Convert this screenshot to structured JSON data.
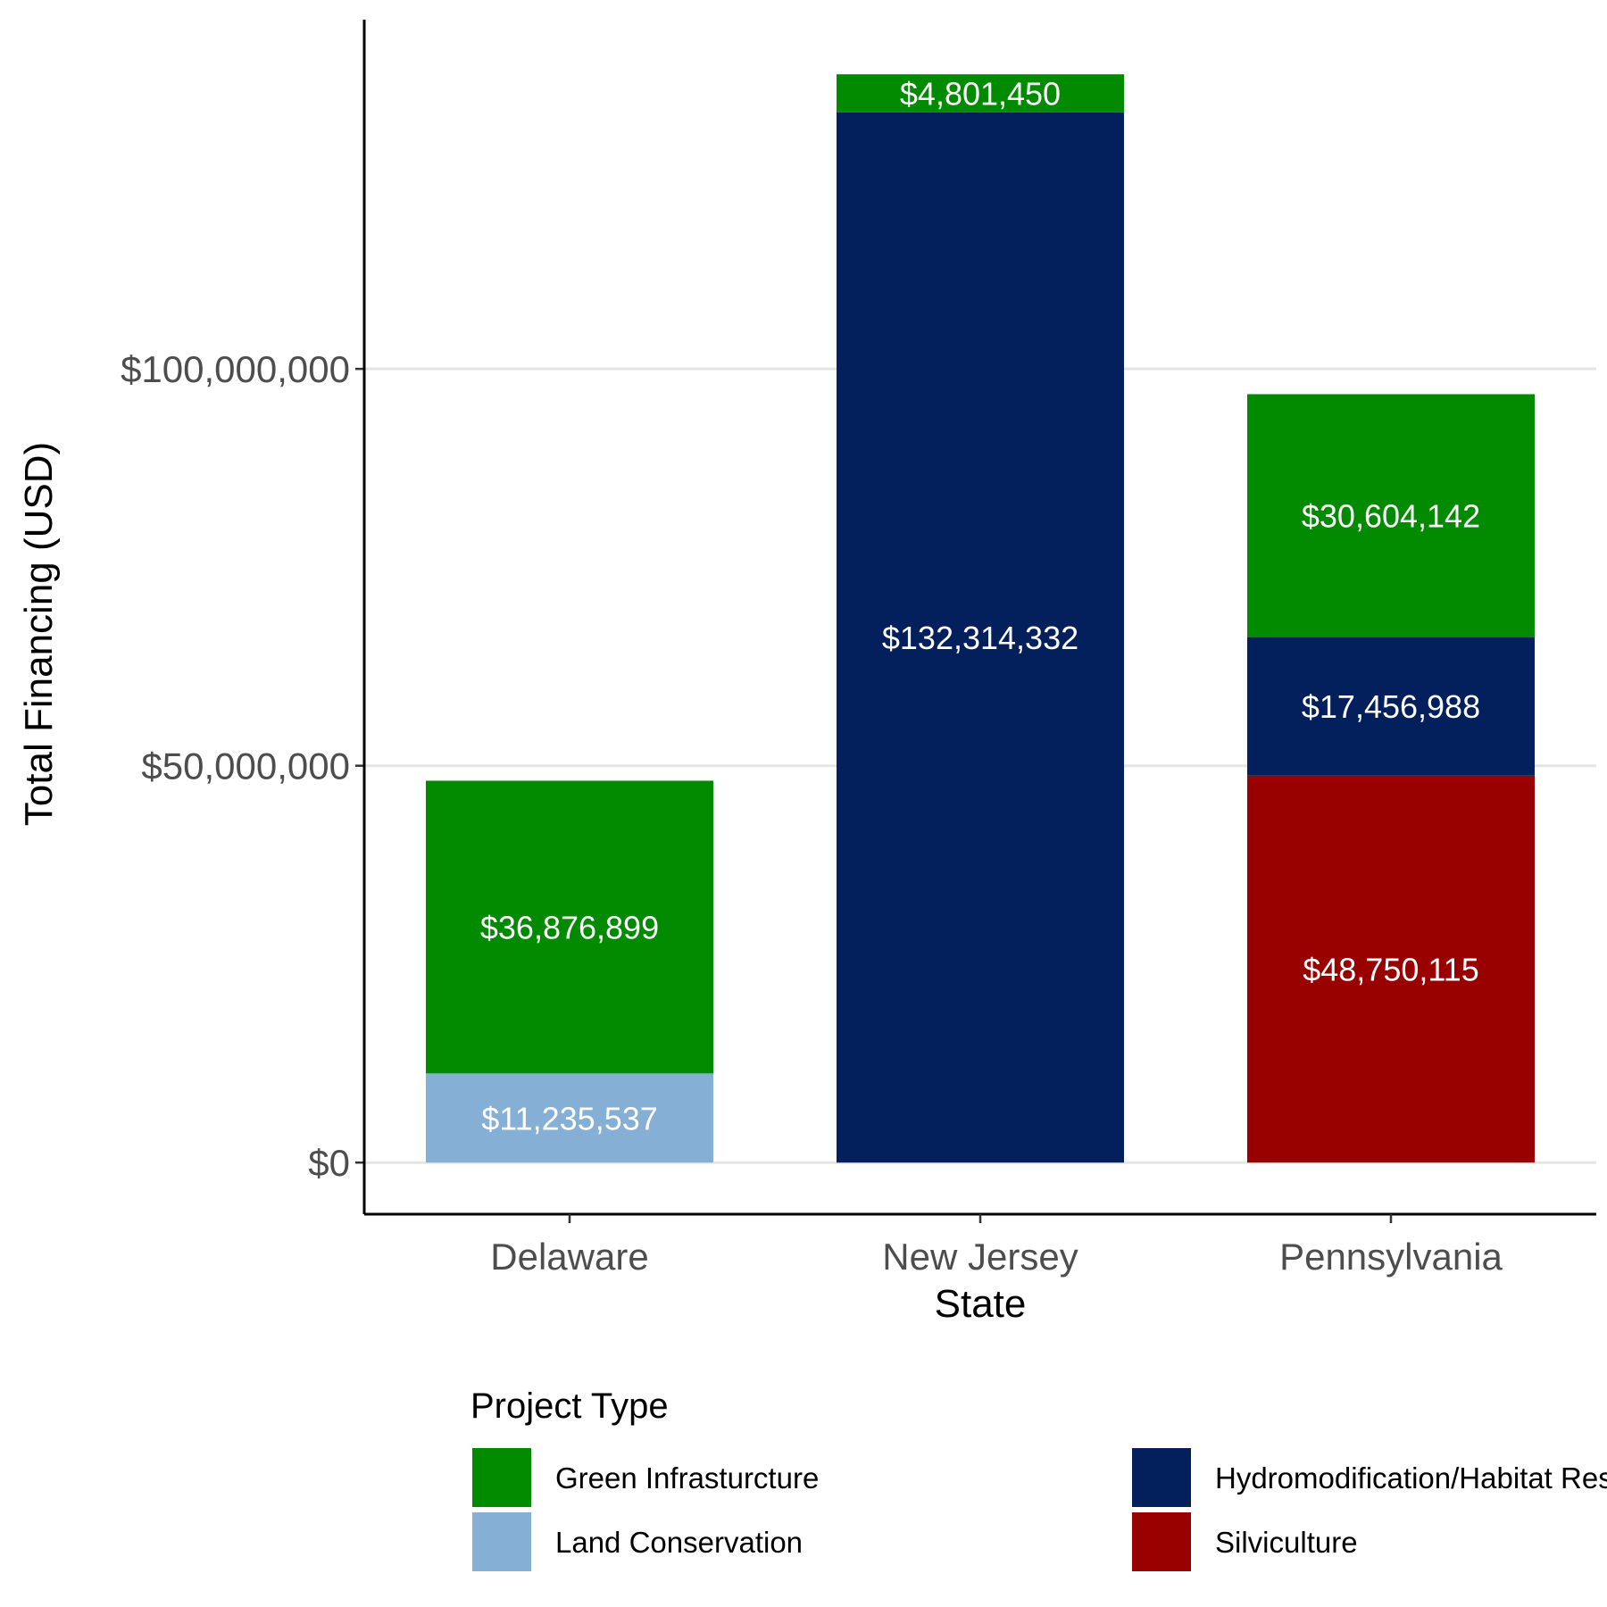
{
  "chart_data": {
    "type": "bar",
    "stacked": true,
    "categories": [
      "Delaware",
      "New Jersey",
      "Pennsylvania"
    ],
    "xlabel": "State",
    "ylabel": "Total Financing (USD)",
    "ylim": [
      -6500000,
      144000000
    ],
    "yticks": [
      0,
      50000000,
      100000000
    ],
    "ytick_labels": [
      "$0",
      "$50,000,000",
      "$100,000,000"
    ],
    "grid": "horizontal major",
    "legend": {
      "title": "Project Type",
      "placement": "bottom"
    },
    "series": [
      {
        "name": "Silviculture",
        "color": "#990000",
        "values": [
          0,
          0,
          48750115
        ],
        "labels": [
          "",
          "",
          "$48,750,115"
        ]
      },
      {
        "name": "Land Conservation",
        "color": "#85afd4",
        "values": [
          11235537,
          0,
          0
        ],
        "labels": [
          "$11,235,537",
          "",
          ""
        ]
      },
      {
        "name": "Hydromodification/Habitat Restoration",
        "color": "#03205c",
        "values": [
          0,
          132314332,
          17456988
        ],
        "labels": [
          "",
          "$132,314,332",
          "$17,456,988"
        ]
      },
      {
        "name": "Green Infrasturcture",
        "color": "#028a00",
        "values": [
          36876899,
          4801450,
          30604142
        ],
        "labels": [
          "$36,876,899",
          "$4,801,450",
          "$30,604,142"
        ]
      }
    ],
    "legend_order": [
      "Green Infrasturcture",
      "Land Conservation",
      "Hydromodification/Habitat Restoration",
      "Silviculture"
    ]
  }
}
